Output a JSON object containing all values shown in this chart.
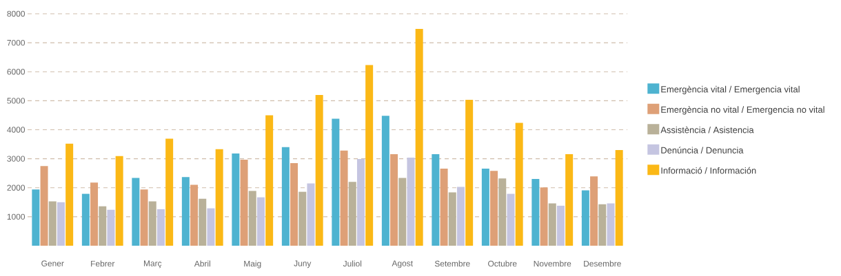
{
  "chart_data": {
    "type": "bar",
    "categories": [
      "Gener",
      "Febrer",
      "Març",
      "Abril",
      "Maig",
      "Juny",
      "Juliol",
      "Agost",
      "Setembre",
      "Octubre",
      "Novembre",
      "Desembre"
    ],
    "series": [
      {
        "name": "Emergència vital / Emergencia vital",
        "color": "#4eb3d0",
        "values": [
          1940,
          1790,
          2340,
          2370,
          3180,
          3400,
          4380,
          4480,
          3160,
          2660,
          2300,
          1910
        ]
      },
      {
        "name": "Emergència no vital / Emergencia no vital",
        "color": "#dea077",
        "values": [
          2750,
          2180,
          1940,
          2100,
          2970,
          2850,
          3280,
          3160,
          2660,
          2580,
          2010,
          2390
        ]
      },
      {
        "name": "Assistència / Asistencia",
        "color": "#b9b199",
        "values": [
          1530,
          1360,
          1530,
          1620,
          1890,
          1860,
          2200,
          2340,
          1840,
          2320,
          1460,
          1430
        ]
      },
      {
        "name": "Denúncia / Denuncia",
        "color": "#c5c5e1",
        "values": [
          1500,
          1240,
          1260,
          1290,
          1670,
          2150,
          2990,
          3040,
          2030,
          1790,
          1380,
          1460
        ]
      },
      {
        "name": "Informació  / Información",
        "color": "#fbb816",
        "values": [
          3520,
          3090,
          3690,
          3330,
          4500,
          5200,
          6230,
          7480,
          5030,
          4240,
          3160,
          3300
        ]
      }
    ],
    "ylim": [
      0,
      8000
    ],
    "yticks": [
      1000,
      2000,
      3000,
      4000,
      5000,
      6000,
      7000,
      8000
    ],
    "grid": "y",
    "legend": "right"
  }
}
